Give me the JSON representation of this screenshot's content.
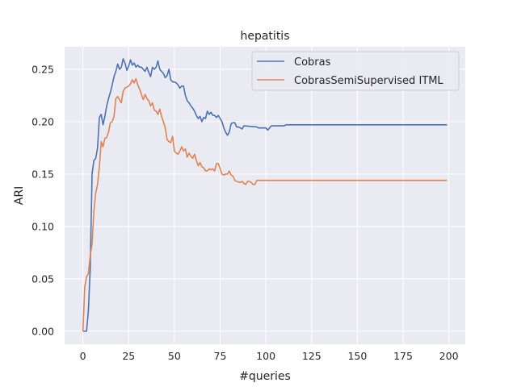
{
  "chart_data": {
    "type": "line",
    "title": "hepatitis",
    "xlabel": "#queries",
    "ylabel": "ARI",
    "xlim": [
      -10,
      209
    ],
    "ylim": [
      -0.0125,
      0.2715
    ],
    "xticks": [
      0,
      25,
      50,
      75,
      100,
      125,
      150,
      175,
      200
    ],
    "yticks": [
      0.0,
      0.05,
      0.1,
      0.15,
      0.2,
      0.25
    ],
    "ytick_labels": [
      "0.00",
      "0.05",
      "0.10",
      "0.15",
      "0.20",
      "0.25"
    ],
    "grid": true,
    "legend_position": "top-right",
    "series": [
      {
        "name": "Cobras",
        "color": "#4c72b0",
        "points": [
          [
            0,
            0.0
          ],
          [
            2,
            0.0
          ],
          [
            3,
            0.02
          ],
          [
            4,
            0.06
          ],
          [
            5,
            0.15
          ],
          [
            6,
            0.163
          ],
          [
            7,
            0.165
          ],
          [
            8,
            0.175
          ],
          [
            9,
            0.204
          ],
          [
            10,
            0.207
          ],
          [
            11,
            0.197
          ],
          [
            12,
            0.205
          ],
          [
            13,
            0.215
          ],
          [
            14,
            0.222
          ],
          [
            15,
            0.228
          ],
          [
            16,
            0.235
          ],
          [
            17,
            0.243
          ],
          [
            18,
            0.248
          ],
          [
            19,
            0.255
          ],
          [
            20,
            0.25
          ],
          [
            21,
            0.252
          ],
          [
            22,
            0.26
          ],
          [
            23,
            0.256
          ],
          [
            24,
            0.249
          ],
          [
            25,
            0.253
          ],
          [
            26,
            0.259
          ],
          [
            27,
            0.254
          ],
          [
            28,
            0.256
          ],
          [
            29,
            0.252
          ],
          [
            30,
            0.254
          ],
          [
            31,
            0.252
          ],
          [
            32,
            0.252
          ],
          [
            33,
            0.25
          ],
          [
            34,
            0.248
          ],
          [
            35,
            0.252
          ],
          [
            36,
            0.247
          ],
          [
            37,
            0.243
          ],
          [
            38,
            0.252
          ],
          [
            39,
            0.25
          ],
          [
            40,
            0.252
          ],
          [
            41,
            0.258
          ],
          [
            42,
            0.25
          ],
          [
            43,
            0.248
          ],
          [
            44,
            0.246
          ],
          [
            45,
            0.242
          ],
          [
            46,
            0.244
          ],
          [
            47,
            0.25
          ],
          [
            48,
            0.24
          ],
          [
            49,
            0.238
          ],
          [
            50,
            0.238
          ],
          [
            51,
            0.237
          ],
          [
            52,
            0.235
          ],
          [
            53,
            0.232
          ],
          [
            54,
            0.234
          ],
          [
            55,
            0.234
          ],
          [
            56,
            0.225
          ],
          [
            57,
            0.22
          ],
          [
            58,
            0.218
          ],
          [
            59,
            0.215
          ],
          [
            60,
            0.213
          ],
          [
            61,
            0.21
          ],
          [
            62,
            0.206
          ],
          [
            63,
            0.203
          ],
          [
            64,
            0.205
          ],
          [
            65,
            0.2
          ],
          [
            66,
            0.204
          ],
          [
            67,
            0.203
          ],
          [
            68,
            0.21
          ],
          [
            69,
            0.207
          ],
          [
            70,
            0.209
          ],
          [
            71,
            0.206
          ],
          [
            72,
            0.206
          ],
          [
            73,
            0.204
          ],
          [
            74,
            0.206
          ],
          [
            75,
            0.203
          ],
          [
            76,
            0.2
          ],
          [
            77,
            0.194
          ],
          [
            78,
            0.19
          ],
          [
            79,
            0.187
          ],
          [
            80,
            0.19
          ],
          [
            81,
            0.198
          ],
          [
            82,
            0.199
          ],
          [
            83,
            0.199
          ],
          [
            84,
            0.195
          ],
          [
            85,
            0.195
          ],
          [
            87,
            0.193
          ],
          [
            88,
            0.196
          ],
          [
            95,
            0.195
          ],
          [
            96,
            0.194
          ],
          [
            100,
            0.194
          ],
          [
            101,
            0.192
          ],
          [
            103,
            0.196
          ],
          [
            110,
            0.196
          ],
          [
            111,
            0.197
          ],
          [
            199,
            0.197
          ]
        ]
      },
      {
        "name": "CobrasSemiSupervised ITML",
        "color": "#dd8452",
        "points": [
          [
            0,
            0.0
          ],
          [
            1,
            0.042
          ],
          [
            2,
            0.052
          ],
          [
            3,
            0.055
          ],
          [
            4,
            0.072
          ],
          [
            5,
            0.083
          ],
          [
            6,
            0.115
          ],
          [
            7,
            0.132
          ],
          [
            8,
            0.14
          ],
          [
            9,
            0.157
          ],
          [
            10,
            0.181
          ],
          [
            11,
            0.176
          ],
          [
            12,
            0.184
          ],
          [
            13,
            0.185
          ],
          [
            14,
            0.19
          ],
          [
            15,
            0.199
          ],
          [
            16,
            0.2
          ],
          [
            17,
            0.205
          ],
          [
            18,
            0.222
          ],
          [
            19,
            0.224
          ],
          [
            20,
            0.221
          ],
          [
            21,
            0.218
          ],
          [
            22,
            0.229
          ],
          [
            23,
            0.232
          ],
          [
            24,
            0.233
          ],
          [
            25,
            0.234
          ],
          [
            26,
            0.236
          ],
          [
            27,
            0.24
          ],
          [
            28,
            0.237
          ],
          [
            29,
            0.241
          ],
          [
            30,
            0.235
          ],
          [
            31,
            0.231
          ],
          [
            32,
            0.226
          ],
          [
            33,
            0.221
          ],
          [
            34,
            0.226
          ],
          [
            35,
            0.222
          ],
          [
            36,
            0.22
          ],
          [
            37,
            0.215
          ],
          [
            38,
            0.218
          ],
          [
            39,
            0.211
          ],
          [
            40,
            0.21
          ],
          [
            41,
            0.207
          ],
          [
            42,
            0.212
          ],
          [
            43,
            0.205
          ],
          [
            44,
            0.2
          ],
          [
            45,
            0.194
          ],
          [
            46,
            0.183
          ],
          [
            47,
            0.181
          ],
          [
            48,
            0.18
          ],
          [
            49,
            0.186
          ],
          [
            50,
            0.172
          ],
          [
            51,
            0.17
          ],
          [
            52,
            0.169
          ],
          [
            53,
            0.172
          ],
          [
            54,
            0.176
          ],
          [
            55,
            0.172
          ],
          [
            56,
            0.174
          ],
          [
            57,
            0.166
          ],
          [
            58,
            0.17
          ],
          [
            59,
            0.167
          ],
          [
            60,
            0.165
          ],
          [
            61,
            0.169
          ],
          [
            62,
            0.163
          ],
          [
            63,
            0.158
          ],
          [
            64,
            0.161
          ],
          [
            65,
            0.157
          ],
          [
            66,
            0.156
          ],
          [
            67,
            0.153
          ],
          [
            68,
            0.153
          ],
          [
            69,
            0.155
          ],
          [
            70,
            0.154
          ],
          [
            71,
            0.155
          ],
          [
            72,
            0.153
          ],
          [
            73,
            0.16
          ],
          [
            74,
            0.16
          ],
          [
            75,
            0.155
          ],
          [
            76,
            0.15
          ],
          [
            77,
            0.149
          ],
          [
            78,
            0.15
          ],
          [
            79,
            0.15
          ],
          [
            80,
            0.153
          ],
          [
            81,
            0.149
          ],
          [
            82,
            0.148
          ],
          [
            83,
            0.144
          ],
          [
            84,
            0.143
          ],
          [
            86,
            0.142
          ],
          [
            87,
            0.143
          ],
          [
            88,
            0.141
          ],
          [
            89,
            0.14
          ],
          [
            90,
            0.143
          ],
          [
            91,
            0.143
          ],
          [
            92,
            0.142
          ],
          [
            93,
            0.14
          ],
          [
            94,
            0.14
          ],
          [
            95,
            0.144
          ],
          [
            96,
            0.144
          ],
          [
            97,
            0.144
          ],
          [
            199,
            0.144
          ]
        ]
      }
    ]
  }
}
